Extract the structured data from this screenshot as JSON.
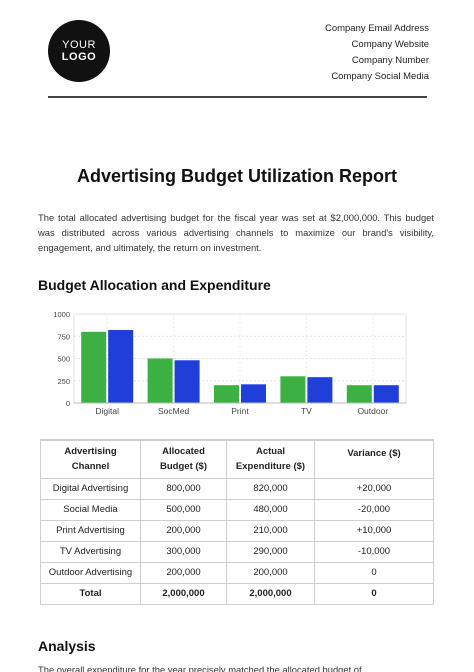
{
  "logo": {
    "line1": "YOUR",
    "line2": "LOGO"
  },
  "contact": {
    "email": "Company Email Address",
    "website": "Company Website",
    "number": "Company Number",
    "social": "Company Social Media"
  },
  "title": "Advertising Budget Utilization Report",
  "intro": "The total allocated advertising budget for the fiscal year was set at $2,000,000. This budget was distributed across various advertising channels to maximize our brand's visibility, engagement, and ultimately, the return on investment.",
  "section_budget": "Budget Allocation and Expenditure",
  "chart_data": {
    "type": "bar",
    "categories": [
      "Digital",
      "SocMed",
      "Print",
      "TV",
      "Outdoor"
    ],
    "series": [
      {
        "values": [
          800,
          500,
          200,
          300,
          200
        ],
        "color": "#3cb043"
      },
      {
        "values": [
          820,
          480,
          210,
          290,
          200
        ],
        "color": "#1f3fd8"
      }
    ],
    "yticks": [
      "0",
      "250",
      "500",
      "750",
      "1000"
    ],
    "ylim": [
      0,
      1000
    ],
    "grid": true
  },
  "table": {
    "headers": [
      [
        "Advertising",
        "Channel"
      ],
      [
        "Allocated",
        "Budget ($)"
      ],
      [
        "Actual",
        "Expenditure ($)"
      ],
      [
        "Variance ($)",
        ""
      ]
    ],
    "rows": [
      [
        "Digital Advertising",
        "800,000",
        "820,000",
        "+20,000"
      ],
      [
        "Social Media",
        "500,000",
        "480,000",
        "-20,000"
      ],
      [
        "Print Advertising",
        "200,000",
        "210,000",
        "+10,000"
      ],
      [
        "TV Advertising",
        "300,000",
        "290,000",
        "-10,000"
      ],
      [
        "Outdoor Advertising",
        "200,000",
        "200,000",
        "0"
      ]
    ],
    "total": [
      "Total",
      "2,000,000",
      "2,000,000",
      "0"
    ]
  },
  "section_analysis": "Analysis",
  "analysis_text": "The overall expenditure for the year precisely matched the allocated budget of"
}
